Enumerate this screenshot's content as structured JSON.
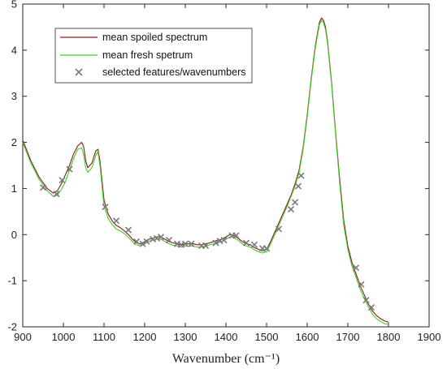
{
  "chart_data": {
    "type": "line",
    "title": "",
    "xlabel": "Wavenumber (cm⁻¹)",
    "ylabel": "",
    "xlim": [
      900,
      1900
    ],
    "ylim": [
      -2,
      5
    ],
    "xticks": [
      "900",
      "1000",
      "1100",
      "1200",
      "1300",
      "1400",
      "1500",
      "1600",
      "1700",
      "1800",
      "1900"
    ],
    "yticks": [
      "-2",
      "-1",
      "0",
      "1",
      "2",
      "3",
      "4",
      "5"
    ],
    "grid": false,
    "legend_position": "top-left",
    "series": [
      {
        "name": "mean spoiled spectrum",
        "color": "#8b1a1a",
        "x": [
          900,
          920,
          940,
          960,
          975,
          985,
          995,
          1005,
          1015,
          1025,
          1035,
          1045,
          1050,
          1055,
          1060,
          1070,
          1080,
          1085,
          1090,
          1100,
          1110,
          1120,
          1130,
          1140,
          1150,
          1160,
          1170,
          1180,
          1190,
          1200,
          1210,
          1220,
          1230,
          1240,
          1250,
          1260,
          1270,
          1280,
          1290,
          1300,
          1310,
          1320,
          1330,
          1340,
          1350,
          1360,
          1370,
          1380,
          1390,
          1400,
          1410,
          1420,
          1430,
          1440,
          1450,
          1460,
          1470,
          1480,
          1490,
          1500,
          1510,
          1520,
          1530,
          1540,
          1550,
          1560,
          1570,
          1580,
          1590,
          1600,
          1610,
          1620,
          1630,
          1635,
          1640,
          1645,
          1650,
          1660,
          1670,
          1680,
          1690,
          1700,
          1710,
          1720,
          1730,
          1740,
          1750,
          1760,
          1770,
          1780,
          1790,
          1800
        ],
        "y": [
          2.05,
          1.6,
          1.25,
          1.0,
          0.9,
          0.95,
          1.1,
          1.3,
          1.5,
          1.75,
          1.92,
          2.0,
          1.9,
          1.6,
          1.45,
          1.55,
          1.82,
          1.85,
          1.6,
          0.75,
          0.45,
          0.3,
          0.2,
          0.15,
          0.08,
          0.0,
          -0.1,
          -0.18,
          -0.2,
          -0.15,
          -0.1,
          -0.08,
          -0.05,
          -0.05,
          -0.1,
          -0.15,
          -0.18,
          -0.2,
          -0.22,
          -0.2,
          -0.2,
          -0.2,
          -0.22,
          -0.22,
          -0.2,
          -0.18,
          -0.15,
          -0.12,
          -0.1,
          -0.05,
          0.0,
          -0.02,
          -0.08,
          -0.15,
          -0.2,
          -0.22,
          -0.28,
          -0.32,
          -0.35,
          -0.32,
          -0.15,
          0.05,
          0.25,
          0.45,
          0.65,
          0.85,
          1.1,
          1.4,
          1.9,
          2.6,
          3.4,
          4.1,
          4.6,
          4.7,
          4.65,
          4.5,
          4.2,
          3.3,
          2.2,
          1.2,
          0.3,
          -0.25,
          -0.6,
          -0.85,
          -1.1,
          -1.3,
          -1.5,
          -1.65,
          -1.75,
          -1.82,
          -1.87,
          -1.9
        ]
      },
      {
        "name": "mean fresh spetrum",
        "color": "#44cc2a",
        "x": [
          900,
          920,
          940,
          960,
          975,
          985,
          995,
          1005,
          1015,
          1025,
          1035,
          1045,
          1050,
          1055,
          1060,
          1070,
          1080,
          1085,
          1090,
          1100,
          1110,
          1120,
          1130,
          1140,
          1150,
          1160,
          1170,
          1180,
          1190,
          1200,
          1210,
          1220,
          1230,
          1240,
          1250,
          1260,
          1270,
          1280,
          1290,
          1300,
          1310,
          1320,
          1330,
          1340,
          1350,
          1360,
          1370,
          1380,
          1390,
          1400,
          1410,
          1420,
          1430,
          1440,
          1450,
          1460,
          1470,
          1480,
          1490,
          1500,
          1510,
          1520,
          1530,
          1540,
          1550,
          1560,
          1570,
          1580,
          1590,
          1600,
          1610,
          1620,
          1630,
          1635,
          1640,
          1645,
          1650,
          1660,
          1670,
          1680,
          1690,
          1700,
          1710,
          1720,
          1730,
          1740,
          1750,
          1760,
          1770,
          1780,
          1790,
          1800
        ],
        "y": [
          2.0,
          1.55,
          1.2,
          0.95,
          0.83,
          0.85,
          0.98,
          1.15,
          1.4,
          1.65,
          1.85,
          1.88,
          1.72,
          1.45,
          1.35,
          1.45,
          1.72,
          1.8,
          1.5,
          0.62,
          0.35,
          0.22,
          0.12,
          0.08,
          0.02,
          -0.06,
          -0.15,
          -0.22,
          -0.25,
          -0.2,
          -0.15,
          -0.12,
          -0.1,
          -0.1,
          -0.15,
          -0.2,
          -0.23,
          -0.25,
          -0.27,
          -0.25,
          -0.25,
          -0.25,
          -0.27,
          -0.27,
          -0.25,
          -0.22,
          -0.2,
          -0.17,
          -0.15,
          -0.1,
          -0.05,
          -0.07,
          -0.12,
          -0.2,
          -0.25,
          -0.27,
          -0.33,
          -0.37,
          -0.4,
          -0.37,
          -0.2,
          0.0,
          0.2,
          0.4,
          0.6,
          0.82,
          1.05,
          1.35,
          1.85,
          2.55,
          3.35,
          4.05,
          4.55,
          4.65,
          4.6,
          4.45,
          4.15,
          3.25,
          2.15,
          1.1,
          0.2,
          -0.32,
          -0.68,
          -0.92,
          -1.18,
          -1.38,
          -1.56,
          -1.72,
          -1.82,
          -1.88,
          -1.93,
          -1.95
        ]
      },
      {
        "name": "selected features/wavenumbers",
        "color": "#7a7a7a",
        "marker": "x",
        "x": [
          950,
          983,
          997,
          1015,
          1103,
          1130,
          1160,
          1180,
          1195,
          1205,
          1220,
          1230,
          1240,
          1260,
          1280,
          1290,
          1300,
          1315,
          1340,
          1350,
          1375,
          1385,
          1395,
          1415,
          1425,
          1450,
          1470,
          1490,
          1500,
          1530,
          1560,
          1570,
          1578,
          1585,
          1720,
          1733,
          1745,
          1758
        ],
        "y": [
          1.02,
          0.88,
          1.18,
          1.42,
          0.6,
          0.3,
          0.1,
          -0.15,
          -0.2,
          -0.15,
          -0.1,
          -0.08,
          -0.05,
          -0.12,
          -0.2,
          -0.22,
          -0.2,
          -0.2,
          -0.24,
          -0.24,
          -0.18,
          -0.14,
          -0.12,
          -0.02,
          -0.02,
          -0.18,
          -0.22,
          -0.3,
          -0.3,
          0.12,
          0.55,
          0.7,
          1.05,
          1.28,
          -0.72,
          -1.08,
          -1.42,
          -1.58
        ]
      }
    ]
  }
}
